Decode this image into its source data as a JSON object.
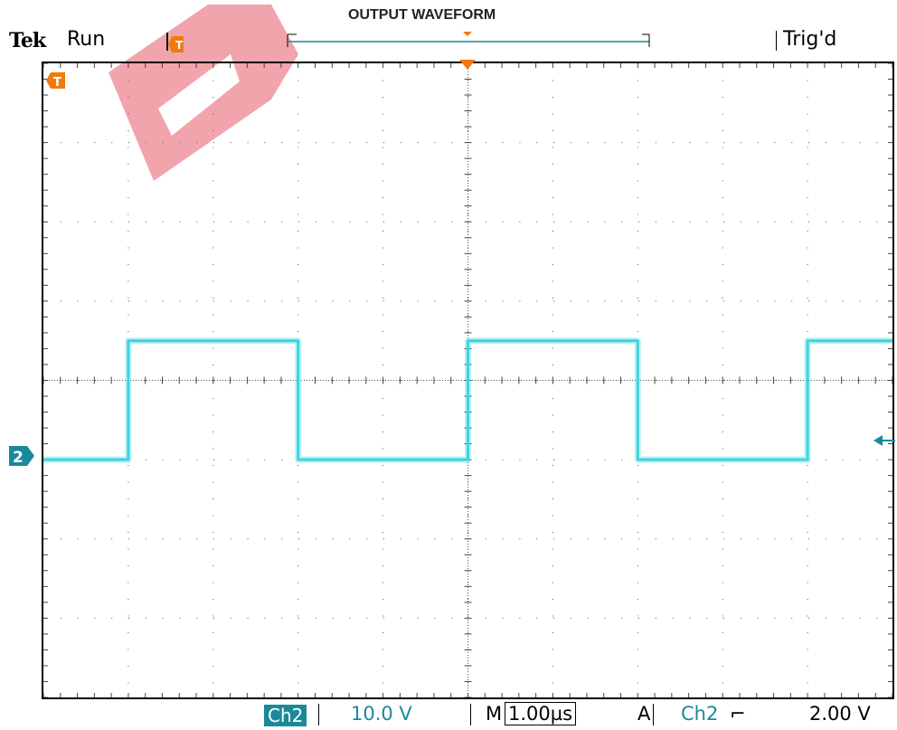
{
  "header": {
    "figure_title": "OUTPUT WAVEFORM",
    "brand": "Tek",
    "acquisition_state": "Run",
    "trigger_status": "Trig'd"
  },
  "markers": {
    "trigger_marker_left": "T",
    "trigger_marker_inner": "T",
    "channel_marker": "2"
  },
  "readout": {
    "channel": "Ch2",
    "volts_per_div": "10.0 V",
    "time_mode": "M",
    "time_per_div": "1.00µs",
    "trigger_mode": "A",
    "trigger_source": "Ch2",
    "trigger_slope": "falling-edge-icon",
    "trigger_level": "2.00 V"
  },
  "colors": {
    "trace": "#3fd3e0",
    "marker_orange": "#f07a10",
    "channel_badge": "#1a8a9a",
    "watermark": "#e85a6a"
  },
  "chart_data": {
    "type": "line",
    "xlim": [
      0,
      10
    ],
    "ylim": [
      -4,
      4
    ],
    "x_divisions": 10,
    "y_divisions": 8,
    "series": [
      {
        "x": [
          0,
          1.0,
          1.0,
          3.0,
          3.0,
          5.0,
          5.0,
          7.0,
          7.0,
          9.0,
          9.0,
          10.0
        ],
        "y": [
          -1.0,
          -1.0,
          0.5,
          0.5,
          -1.0,
          -1.0,
          0.5,
          0.5,
          -1.0,
          -1.0,
          0.5,
          0.5
        ]
      }
    ]
  }
}
